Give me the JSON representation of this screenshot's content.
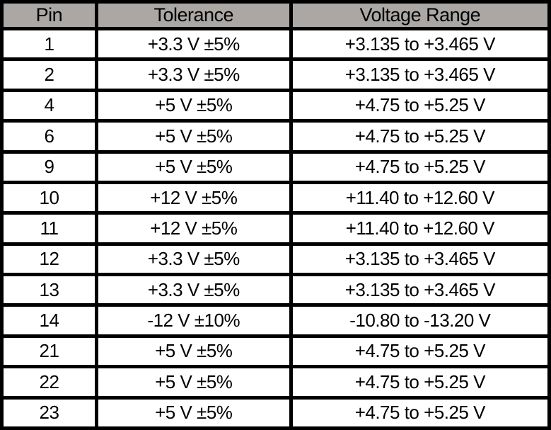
{
  "table": {
    "title": "pin-voltage-tolerance-table",
    "columns": [
      "Pin",
      "Tolerance",
      "Voltage Range"
    ],
    "rows": [
      [
        "1",
        "+3.3 V ±5%",
        "+3.135 to +3.465 V"
      ],
      [
        "2",
        "+3.3 V ±5%",
        "+3.135 to +3.465 V"
      ],
      [
        "4",
        "+5 V ±5%",
        "+4.75 to +5.25 V"
      ],
      [
        "6",
        "+5 V ±5%",
        "+4.75 to +5.25 V"
      ],
      [
        "9",
        "+5 V ±5%",
        "+4.75 to +5.25 V"
      ],
      [
        "10",
        "+12 V ±5%",
        "+11.40 to +12.60 V"
      ],
      [
        "11",
        "+12 V ±5%",
        "+11.40 to +12.60 V"
      ],
      [
        "12",
        "+3.3 V ±5%",
        "+3.135 to +3.465 V"
      ],
      [
        "13",
        "+3.3 V ±5%",
        "+3.135 to +3.465 V"
      ],
      [
        "14",
        "-12 V ±10%",
        "-10.80 to -13.20 V"
      ],
      [
        "21",
        "+5 V ±5%",
        "+4.75 to +5.25 V"
      ],
      [
        "22",
        "+5 V ±5%",
        "+4.75 to +5.25 V"
      ],
      [
        "23",
        "+5 V ±5%",
        "+4.75 to +5.25 V"
      ]
    ],
    "colors": {
      "header_bg": "#aba7a4",
      "border": "#000000",
      "row_bg": "#ffffff",
      "text": "#000000"
    }
  }
}
